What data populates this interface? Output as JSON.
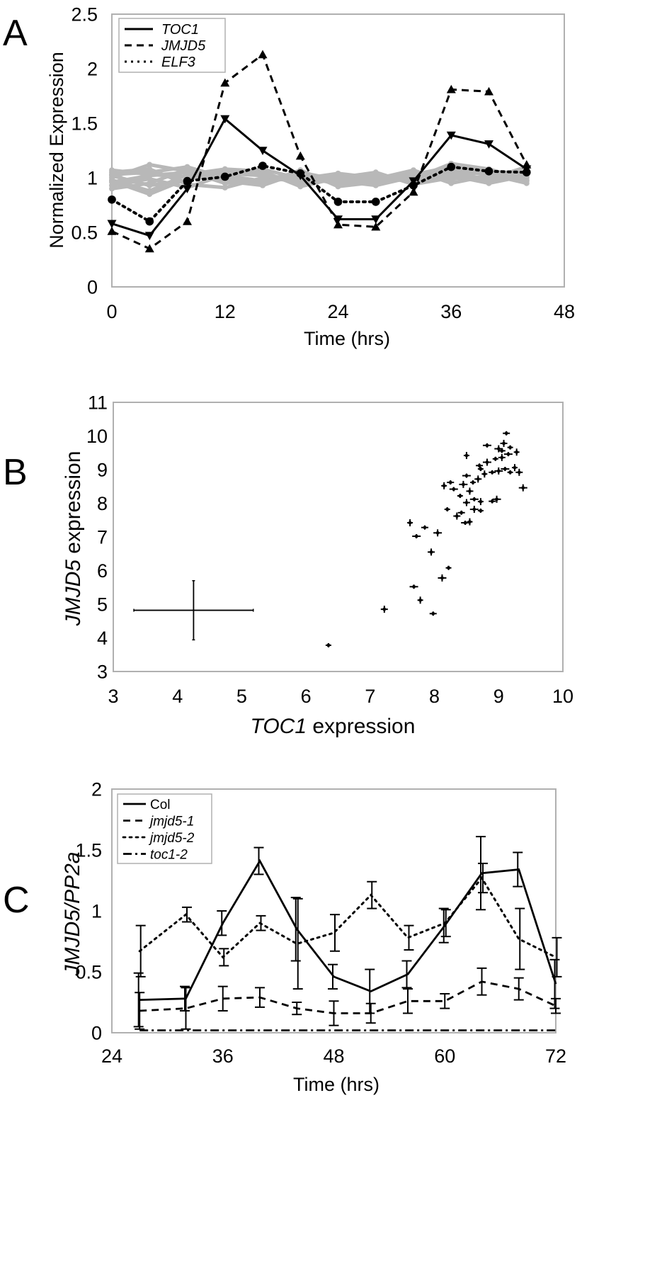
{
  "colors": {
    "frame": "#b0b0b0",
    "ink": "#000000",
    "gray_lines": "#b8b8b8",
    "background": "#ffffff"
  },
  "chart_data": [
    {
      "panel": "A",
      "type": "line",
      "xlabel": "Time (hrs)",
      "ylabel": "Normalized Expression",
      "xlim": [
        0,
        48
      ],
      "ylim": [
        0,
        2.5
      ],
      "x_ticks": [
        0,
        12,
        24,
        36,
        48
      ],
      "y_ticks": [
        0,
        0.5,
        1,
        1.5,
        2,
        2.5
      ],
      "y_tick_labels": [
        "0",
        "0.5",
        "1",
        "1.5",
        "2",
        "2.5"
      ],
      "legend": "top-left",
      "x": [
        0,
        4,
        8,
        12,
        16,
        20,
        24,
        28,
        32,
        36,
        40,
        44
      ],
      "series": [
        {
          "name": "TOC1",
          "style": "solid",
          "marker": "triangle-down",
          "values": [
            0.58,
            0.47,
            0.9,
            1.54,
            1.25,
            1.02,
            0.62,
            0.62,
            0.97,
            1.39,
            1.31,
            1.08
          ]
        },
        {
          "name": "JMJD5",
          "style": "dashed",
          "marker": "triangle-up",
          "values": [
            0.51,
            0.35,
            0.6,
            1.87,
            2.13,
            1.2,
            0.57,
            0.55,
            0.87,
            1.81,
            1.79,
            1.12
          ]
        },
        {
          "name": "ELF3",
          "style": "dotted",
          "marker": "circle",
          "values": [
            0.8,
            0.6,
            0.97,
            1.01,
            1.11,
            1.04,
            0.78,
            0.78,
            0.93,
            1.1,
            1.06,
            1.05
          ]
        }
      ],
      "background_series": [
        [
          0.96,
          1.02,
          1.05,
          1.02,
          0.97,
          1.0,
          0.95,
          0.98,
          1.03,
          1.1,
          1.06,
          1.04
        ],
        [
          1.02,
          0.93,
          0.98,
          1.06,
          1.03,
          0.96,
          1.02,
          0.95,
          1.0,
          0.98,
          1.08,
          0.97
        ],
        [
          0.9,
          0.95,
          1.08,
          0.97,
          0.93,
          1.05,
          0.98,
          1.03,
          0.96,
          1.04,
          0.99,
          1.1
        ],
        [
          1.05,
          1.08,
          0.94,
          0.91,
          1.0,
          1.02,
          0.94,
          0.99,
          1.07,
          0.95,
          1.02,
          1.0
        ],
        [
          0.98,
          0.88,
          1.03,
          1.08,
          1.06,
          0.92,
          1.0,
          1.05,
          0.94,
          1.0,
          0.97,
          1.06
        ],
        [
          1.0,
          1.12,
          1.06,
          0.95,
          0.98,
          1.04,
          0.97,
          0.93,
          1.01,
          1.07,
          1.03,
          0.95
        ],
        [
          0.93,
          0.99,
          0.91,
          1.03,
          1.08,
          0.99,
          1.04,
          1.0,
          1.05,
          1.02,
          0.95,
          1.02
        ],
        [
          1.07,
          1.03,
          1.01,
          0.99,
          0.95,
          1.07,
          0.92,
          0.96,
          0.99,
          1.13,
          1.08,
          0.98
        ],
        [
          0.97,
          0.85,
          0.99,
          1.04,
          1.02,
          0.95,
          1.0,
          0.97,
          1.04,
          1.0,
          1.01,
          1.03
        ],
        [
          1.03,
          1.05,
          1.1,
          1.0,
          0.96,
          1.01,
          0.96,
          1.02,
          0.97,
          1.05,
          1.04,
          1.01
        ]
      ]
    },
    {
      "panel": "B",
      "type": "scatter",
      "xlabel_italic": "TOC1",
      "xlabel_rest": " expression",
      "ylabel_italic": "JMJD5",
      "ylabel_rest": " expression",
      "xlim": [
        3,
        10
      ],
      "ylim": [
        3,
        11
      ],
      "x_ticks": [
        3,
        4,
        5,
        6,
        7,
        8,
        9,
        10
      ],
      "y_ticks": [
        3,
        4,
        5,
        6,
        7,
        8,
        9,
        10,
        11
      ],
      "error_cross": {
        "x": 4.25,
        "y": 4.82,
        "x_err": 0.93,
        "y_err": 0.88
      },
      "points": [
        [
          6.35,
          3.78
        ],
        [
          7.22,
          4.85
        ],
        [
          7.68,
          5.52
        ],
        [
          7.78,
          5.12
        ],
        [
          7.98,
          4.72
        ],
        [
          8.12,
          5.78
        ],
        [
          8.22,
          6.08
        ],
        [
          7.95,
          6.55
        ],
        [
          7.72,
          7.02
        ],
        [
          7.62,
          7.42
        ],
        [
          7.85,
          7.28
        ],
        [
          8.05,
          7.12
        ],
        [
          8.2,
          7.82
        ],
        [
          8.35,
          7.62
        ],
        [
          8.48,
          7.42
        ],
        [
          8.55,
          7.45
        ],
        [
          8.42,
          7.72
        ],
        [
          8.62,
          7.82
        ],
        [
          8.72,
          7.78
        ],
        [
          8.5,
          8.02
        ],
        [
          8.62,
          8.12
        ],
        [
          8.72,
          8.05
        ],
        [
          8.9,
          8.06
        ],
        [
          8.97,
          8.12
        ],
        [
          8.4,
          8.22
        ],
        [
          8.55,
          8.36
        ],
        [
          8.3,
          8.42
        ],
        [
          8.15,
          8.52
        ],
        [
          8.25,
          8.62
        ],
        [
          8.45,
          8.56
        ],
        [
          8.6,
          8.62
        ],
        [
          8.68,
          8.72
        ],
        [
          8.5,
          8.82
        ],
        [
          8.78,
          8.87
        ],
        [
          8.9,
          8.92
        ],
        [
          9.0,
          8.96
        ],
        [
          9.18,
          8.92
        ],
        [
          9.32,
          8.92
        ],
        [
          9.1,
          9.02
        ],
        [
          9.25,
          9.06
        ],
        [
          8.7,
          9.12
        ],
        [
          8.82,
          9.22
        ],
        [
          8.95,
          9.32
        ],
        [
          9.05,
          9.36
        ],
        [
          9.15,
          9.46
        ],
        [
          9.28,
          9.52
        ],
        [
          9.05,
          9.56
        ],
        [
          9.0,
          9.62
        ],
        [
          9.18,
          9.66
        ],
        [
          9.08,
          9.78
        ],
        [
          8.82,
          9.72
        ],
        [
          8.5,
          9.42
        ],
        [
          9.12,
          10.08
        ],
        [
          9.38,
          8.46
        ],
        [
          8.72,
          9.02
        ]
      ]
    },
    {
      "panel": "C",
      "type": "line",
      "xlabel": "Time (hrs)",
      "ylabel": "JMJD5/PP2a",
      "xlim": [
        24,
        72
      ],
      "ylim": [
        0,
        2
      ],
      "x_ticks": [
        24,
        36,
        48,
        60,
        72
      ],
      "y_ticks": [
        0,
        0.5,
        1,
        1.5,
        2
      ],
      "y_tick_labels": [
        "0",
        "0.5",
        "1",
        "1.5",
        "2"
      ],
      "legend": "top-left",
      "x": [
        27,
        32,
        36,
        40,
        44,
        48,
        52,
        56,
        60,
        64,
        68,
        72
      ],
      "series": [
        {
          "name": "Col",
          "style": "solid",
          "values": [
            0.27,
            0.28,
            0.9,
            1.41,
            0.85,
            0.46,
            0.34,
            0.48,
            0.88,
            1.31,
            1.34,
            0.4
          ],
          "errors": [
            0.22,
            0.1,
            0.1,
            0.11,
            0.26,
            0.1,
            0.18,
            0.11,
            0.14,
            0.3,
            0.14,
            0.2
          ]
        },
        {
          "name": "jmjd5-1",
          "style": "dashed",
          "values": [
            0.18,
            0.2,
            0.28,
            0.29,
            0.2,
            0.16,
            0.16,
            0.26,
            0.26,
            0.42,
            0.36,
            0.22
          ],
          "errors": [
            0.15,
            0.17,
            0.1,
            0.08,
            0.05,
            0.1,
            0.08,
            0.1,
            0.06,
            0.11,
            0.09,
            0.06
          ]
        },
        {
          "name": "jmjd5-2",
          "style": "dotted",
          "values": [
            0.67,
            0.97,
            0.62,
            0.9,
            0.73,
            0.82,
            1.13,
            0.78,
            0.9,
            1.27,
            0.77,
            0.62
          ],
          "errors": [
            0.21,
            0.06,
            0.07,
            0.06,
            0.37,
            0.15,
            0.11,
            0.1,
            0.11,
            0.12,
            0.25,
            0.16
          ]
        },
        {
          "name": "toc1-2",
          "style": "dashdot",
          "values": [
            0.02,
            0.02,
            0.02,
            0.02,
            0.02,
            0.02,
            0.02,
            0.02,
            0.02,
            0.02,
            0.02,
            0.02
          ],
          "errors": [
            0,
            0,
            0,
            0,
            0,
            0,
            0,
            0,
            0,
            0,
            0,
            0
          ]
        }
      ]
    }
  ],
  "panel_labels": {
    "a": "A",
    "b": "B",
    "c": "C"
  }
}
